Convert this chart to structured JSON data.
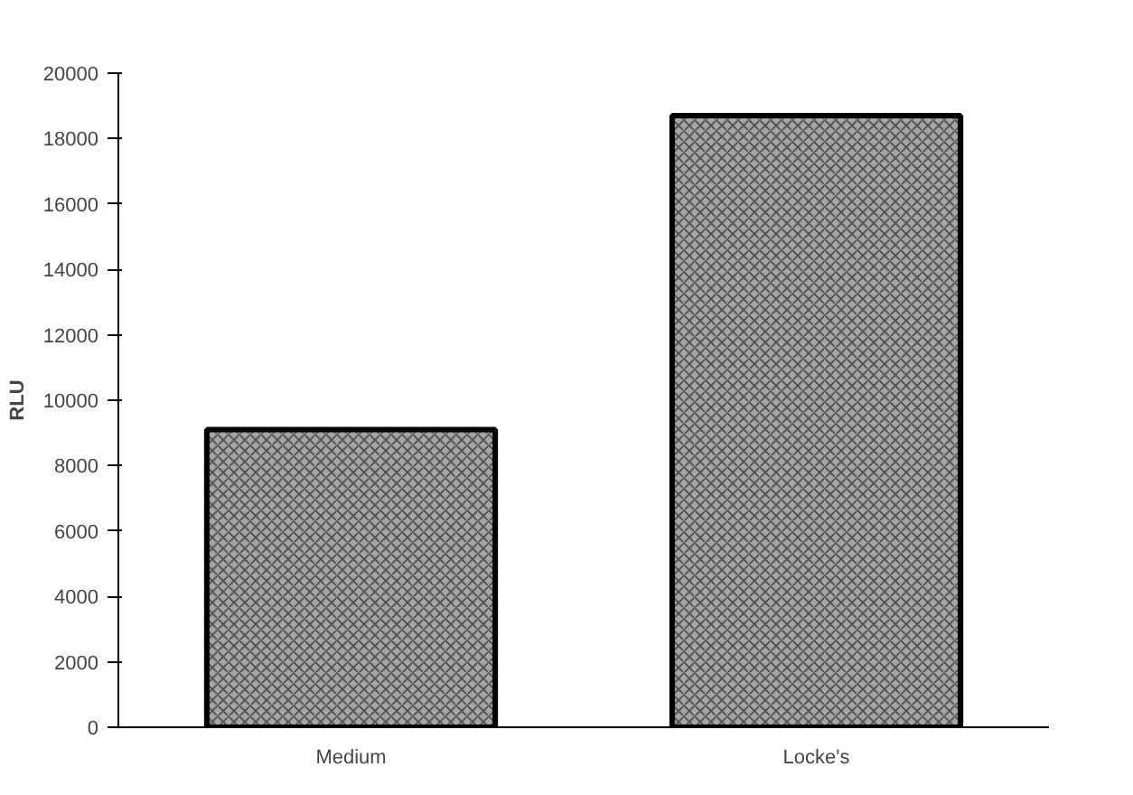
{
  "chart_data": {
    "type": "bar",
    "ylabel": "RLU",
    "categories": [
      "Medium",
      "Locke's"
    ],
    "values": [
      9100,
      18700
    ],
    "color": "#a6a6a6",
    "ylim": [
      0,
      20000
    ],
    "yticks": [
      0,
      2000,
      4000,
      6000,
      8000,
      10000,
      12000,
      14000,
      16000,
      18000,
      20000
    ],
    "grid": false
  }
}
